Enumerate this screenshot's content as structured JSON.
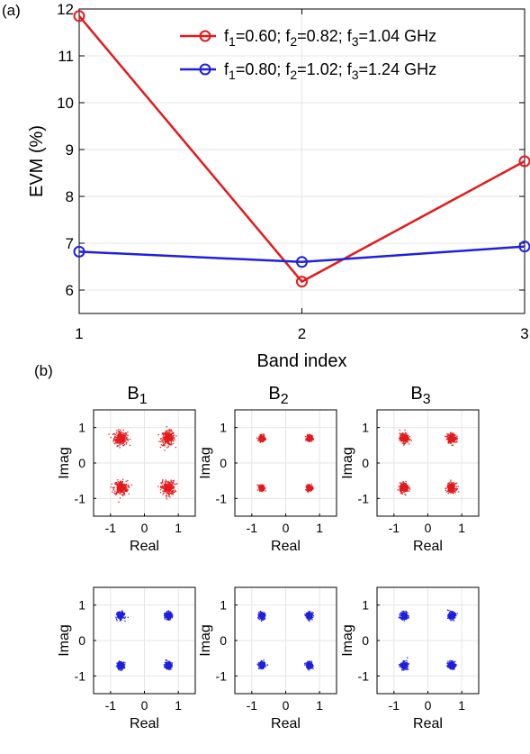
{
  "colors": {
    "series_1": "#e31a1c",
    "series_2": "#1f1fe0",
    "grid": "#e6e6e6",
    "axis": "#000000"
  },
  "panel_a": {
    "label": "(a)"
  },
  "panel_b": {
    "label": "(b)"
  },
  "chart_data": [
    {
      "type": "line",
      "title": "",
      "xlabel": "Band index",
      "ylabel": "EVM (%)",
      "x": [
        1,
        2,
        3
      ],
      "xlim": [
        1,
        3
      ],
      "ylim": [
        5.5,
        12
      ],
      "xticks": [
        "1",
        "2",
        "3"
      ],
      "yticks": [
        "6",
        "7",
        "8",
        "9",
        "10",
        "11",
        "12"
      ],
      "grid": true,
      "legend_position": "top-right",
      "markers": "circle",
      "series": [
        {
          "name_parts": [
            "f",
            "1",
            "=0.60; f",
            "2",
            "=0.82; f",
            "3",
            "=1.04 GHz"
          ],
          "values": [
            11.85,
            6.18,
            8.75
          ],
          "color": "#e31a1c"
        },
        {
          "name_parts": [
            "f",
            "1",
            "=0.80; f",
            "2",
            "=1.02; f",
            "3",
            "=1.24 GHz"
          ],
          "values": [
            6.82,
            6.6,
            6.93
          ],
          "color": "#1f1fe0"
        }
      ]
    },
    {
      "type": "scatter",
      "description": "QPSK constellation diagrams per band (top row: red series, bottom row: blue series)",
      "xlabel": "Real",
      "ylabel": "Imag",
      "xlim": [
        -1.5,
        1.5
      ],
      "ylim": [
        -1.5,
        1.5
      ],
      "xticks": [
        "-1",
        "0",
        "1"
      ],
      "yticks": [
        "1",
        "0",
        "-1"
      ],
      "grid": true,
      "constellation_points": [
        [
          -0.7,
          0.7
        ],
        [
          0.7,
          0.7
        ],
        [
          -0.7,
          -0.7
        ],
        [
          0.7,
          -0.7
        ]
      ],
      "panels": [
        {
          "band": "B",
          "sub": "1",
          "row": 0,
          "col": 0,
          "color": "#e31a1c",
          "spread": 0.1
        },
        {
          "band": "B",
          "sub": "2",
          "row": 0,
          "col": 1,
          "color": "#e31a1c",
          "spread": 0.04
        },
        {
          "band": "B",
          "sub": "3",
          "row": 0,
          "col": 2,
          "color": "#e31a1c",
          "spread": 0.065
        },
        {
          "row": 1,
          "col": 0,
          "color": "#1f1fe0",
          "spread": 0.05
        },
        {
          "row": 1,
          "col": 1,
          "color": "#1f1fe0",
          "spread": 0.045
        },
        {
          "row": 1,
          "col": 2,
          "color": "#1f1fe0",
          "spread": 0.05
        }
      ]
    }
  ]
}
